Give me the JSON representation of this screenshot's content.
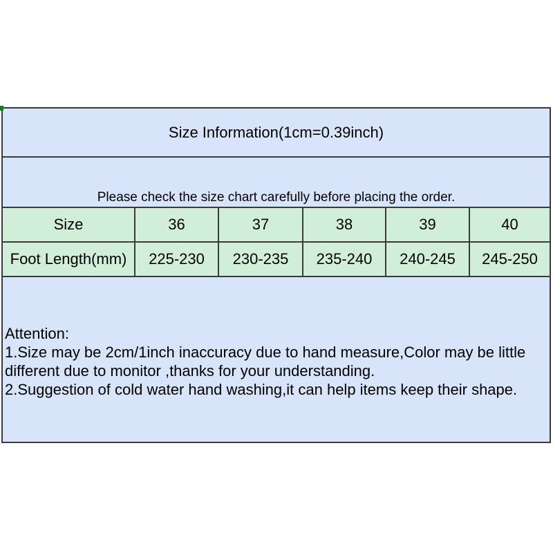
{
  "page": {
    "background": "#ffffff"
  },
  "colors": {
    "panel_blue": "#d8e4f9",
    "row_green": "#d1eed9",
    "border_dark": "#3a3a3a",
    "text": "#000000",
    "corner_artifact_green": "#1d7a24"
  },
  "chart_data": {
    "type": "table",
    "title": "Size Information(1cm=0.39inch)",
    "subtitle": "Please check the size chart carefully before placing the order.",
    "columns": [
      "Size",
      "36",
      "37",
      "38",
      "39",
      "40"
    ],
    "rows": [
      [
        "Foot Length(mm)",
        "225-230",
        "230-235",
        "235-240",
        "240-245",
        "245-250"
      ]
    ],
    "notes": {
      "heading": "Attention:",
      "lines": [
        "1.Size may be 2cm/1inch inaccuracy due to hand measure,Color may be little",
        "different due to monitor ,thanks for your understanding.",
        "2.Suggestion of cold water hand washing,it can help items keep their shape."
      ]
    },
    "layout_hints": {
      "header_rows_background": "light blue",
      "data_rows_background": "light green",
      "grid": "on",
      "first_column_is_row_label": true
    }
  }
}
